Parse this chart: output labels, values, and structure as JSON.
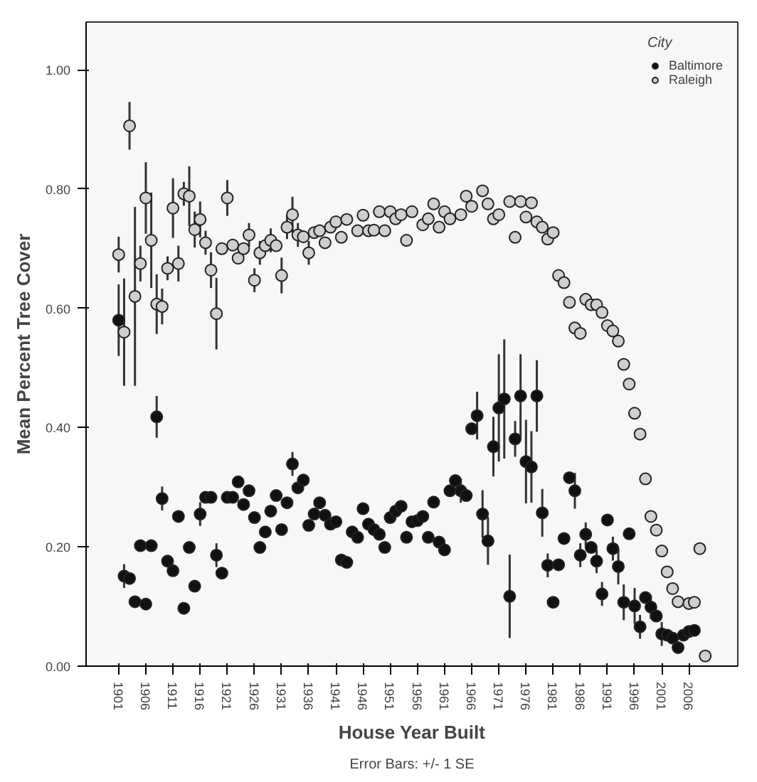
{
  "chart_data": {
    "type": "scatter",
    "xlabel": "House Year Built",
    "ylabel": "Mean Percent Tree Cover",
    "legend_title": "City",
    "legend": "top right",
    "marker": "circle",
    "grid": false,
    "annotations": [
      "Error Bars: +/- 1 SE"
    ],
    "xlim": [
      1895,
      2015
    ],
    "ylim": [
      0,
      1.08
    ],
    "xticks": [
      1901,
      1906,
      1911,
      1916,
      1921,
      1926,
      1931,
      1936,
      1941,
      1946,
      1951,
      1956,
      1961,
      1966,
      1971,
      1976,
      1981,
      1986,
      1991,
      1996,
      2001,
      2006
    ],
    "yticks": [
      {
        "value": 0,
        "label": "0.00"
      },
      {
        "value": 0.2,
        "label": "0.20"
      },
      {
        "value": 0.4,
        "label": "0.40"
      },
      {
        "value": 0.6,
        "label": "0.60"
      },
      {
        "value": 0.8,
        "label": "0.80"
      },
      {
        "value": 1.0,
        "label": "1.00"
      }
    ],
    "series": [
      {
        "name": "Baltimore",
        "color": "#111111",
        "x": [
          1901,
          1902,
          1903,
          1904,
          1905,
          1906,
          1907,
          1908,
          1909,
          1910,
          1911,
          1912,
          1913,
          1914,
          1915,
          1916,
          1917,
          1918,
          1919,
          1920,
          1921,
          1922,
          1923,
          1924,
          1925,
          1926,
          1927,
          1928,
          1929,
          1930,
          1931,
          1932,
          1933,
          1934,
          1935,
          1936,
          1937,
          1938,
          1939,
          1940,
          1941,
          1942,
          1943,
          1944,
          1945,
          1946,
          1947,
          1948,
          1949,
          1950,
          1951,
          1952,
          1953,
          1954,
          1955,
          1956,
          1957,
          1958,
          1959,
          1960,
          1961,
          1962,
          1963,
          1964,
          1965,
          1966,
          1967,
          1968,
          1969,
          1970,
          1971,
          1972,
          1973,
          1974,
          1975,
          1976,
          1977,
          1978,
          1979,
          1980,
          1981,
          1982,
          1983,
          1984,
          1985,
          1986,
          1987,
          1988,
          1989,
          1990,
          1991,
          1992,
          1993,
          1994,
          1995,
          1996,
          1997,
          1998,
          1999,
          2000,
          2001,
          2002,
          2003,
          2004,
          2005,
          2006,
          2007
        ],
        "values": [
          0.58,
          0.151,
          0.147,
          0.108,
          0.202,
          0.104,
          0.202,
          0.418,
          0.281,
          0.176,
          0.16,
          0.251,
          0.097,
          0.199,
          0.134,
          0.255,
          0.283,
          0.283,
          0.186,
          0.156,
          0.283,
          0.283,
          0.309,
          0.271,
          0.294,
          0.249,
          0.199,
          0.225,
          0.26,
          0.286,
          0.229,
          0.274,
          0.339,
          0.299,
          0.312,
          0.236,
          0.255,
          0.274,
          0.253,
          0.238,
          0.242,
          0.178,
          0.174,
          0.225,
          0.216,
          0.264,
          0.238,
          0.229,
          0.221,
          0.199,
          0.249,
          0.26,
          0.268,
          0.216,
          0.242,
          0.244,
          0.251,
          0.216,
          0.275,
          0.208,
          0.195,
          0.294,
          0.311,
          0.294,
          0.286,
          0.398,
          0.42,
          0.255,
          0.21,
          0.368,
          0.433,
          0.448,
          0.117,
          0.381,
          0.453,
          0.343,
          0.334,
          0.453,
          0.257,
          0.169,
          0.107,
          0.17,
          0.214,
          0.316,
          0.294,
          0.186,
          0.221,
          0.199,
          0.176,
          0.121,
          0.245,
          0.197,
          0.167,
          0.107,
          0.222,
          0.101,
          0.066,
          0.115,
          0.099,
          0.084,
          0.054,
          0.052,
          0.047,
          0.031,
          0.052,
          0.058,
          0.06
        ],
        "errors": [
          0.06,
          0.02,
          null,
          null,
          null,
          null,
          null,
          0.035,
          0.02,
          null,
          null,
          null,
          null,
          null,
          null,
          0.02,
          null,
          null,
          0.02,
          null,
          null,
          null,
          null,
          null,
          null,
          null,
          null,
          null,
          null,
          null,
          null,
          null,
          0.02,
          null,
          null,
          null,
          null,
          null,
          null,
          null,
          null,
          null,
          null,
          null,
          null,
          null,
          null,
          null,
          null,
          null,
          null,
          null,
          null,
          null,
          null,
          null,
          null,
          null,
          null,
          null,
          null,
          null,
          null,
          0.02,
          null,
          null,
          0.04,
          0.04,
          0.04,
          0.05,
          0.09,
          0.1,
          0.07,
          0.03,
          0.07,
          0.07,
          0.06,
          0.06,
          0.04,
          0.02,
          null,
          null,
          null,
          null,
          0.03,
          0.02,
          0.02,
          null,
          0.02,
          0.02,
          null,
          0.02,
          0.03,
          0.03,
          null,
          0.03,
          0.02,
          null,
          0.02,
          null,
          0.02,
          null,
          null,
          null,
          null,
          null,
          null
        ]
      },
      {
        "name": "Raleigh",
        "color": "#cfcfcf",
        "x": [
          1901,
          1902,
          1903,
          1904,
          1905,
          1906,
          1907,
          1908,
          1909,
          1910,
          1911,
          1912,
          1913,
          1914,
          1915,
          1916,
          1917,
          1918,
          1919,
          1920,
          1921,
          1922,
          1923,
          1924,
          1925,
          1926,
          1927,
          1928,
          1929,
          1930,
          1931,
          1932,
          1933,
          1934,
          1935,
          1936,
          1937,
          1938,
          1939,
          1940,
          1941,
          1942,
          1943,
          1945,
          1946,
          1947,
          1948,
          1949,
          1950,
          1951,
          1952,
          1953,
          1954,
          1955,
          1957,
          1958,
          1959,
          1960,
          1961,
          1962,
          1964,
          1965,
          1966,
          1968,
          1969,
          1970,
          1971,
          1973,
          1974,
          1975,
          1976,
          1977,
          1978,
          1979,
          1980,
          1981,
          1982,
          1983,
          1984,
          1985,
          1986,
          1987,
          1988,
          1989,
          1990,
          1991,
          1992,
          1993,
          1994,
          1995,
          1996,
          1997,
          1998,
          1999,
          2000,
          2001,
          2002,
          2003,
          2004,
          2006,
          2007,
          2008,
          2009
        ],
        "values": [
          0.69,
          0.56,
          0.906,
          0.62,
          0.675,
          0.785,
          0.714,
          0.607,
          0.603,
          0.667,
          0.768,
          0.675,
          0.792,
          0.788,
          0.732,
          0.749,
          0.71,
          0.664,
          0.591,
          0.7,
          0.785,
          0.706,
          0.684,
          0.7,
          0.723,
          0.647,
          0.693,
          0.705,
          0.714,
          0.705,
          0.655,
          0.736,
          0.757,
          0.723,
          0.72,
          0.693,
          0.727,
          0.73,
          0.71,
          0.736,
          0.745,
          0.719,
          0.749,
          0.73,
          0.756,
          0.73,
          0.731,
          0.762,
          0.73,
          0.762,
          0.75,
          0.757,
          0.714,
          0.762,
          0.74,
          0.75,
          0.775,
          0.736,
          0.762,
          0.75,
          0.757,
          0.788,
          0.771,
          0.797,
          0.775,
          0.75,
          0.757,
          0.779,
          0.719,
          0.779,
          0.753,
          0.777,
          0.745,
          0.736,
          0.716,
          0.727,
          0.655,
          0.643,
          0.61,
          0.567,
          0.558,
          0.615,
          0.606,
          0.606,
          0.593,
          0.571,
          0.562,
          0.545,
          0.506,
          0.473,
          0.424,
          0.389,
          0.314,
          0.251,
          0.228,
          0.193,
          0.158,
          0.13,
          0.108,
          0.105,
          0.107,
          0.197,
          0.017
        ],
        "errors": [
          0.03,
          0.09,
          0.04,
          0.15,
          0.03,
          0.06,
          0.08,
          0.05,
          0.03,
          0.02,
          0.05,
          0.03,
          0.02,
          0.05,
          0.03,
          0.03,
          0.02,
          0.03,
          0.06,
          null,
          0.03,
          null,
          null,
          null,
          0.02,
          0.02,
          0.02,
          null,
          0.02,
          null,
          0.03,
          0.02,
          0.03,
          0.02,
          null,
          0.02,
          null,
          null,
          null,
          null,
          null,
          null,
          null,
          null,
          null,
          null,
          null,
          null,
          null,
          null,
          null,
          null,
          null,
          null,
          null,
          null,
          null,
          null,
          null,
          null,
          null,
          null,
          null,
          null,
          null,
          null,
          null,
          null,
          null,
          null,
          null,
          null,
          null,
          null,
          null,
          null,
          null,
          null,
          null,
          null,
          null,
          null,
          null,
          null,
          null,
          null,
          null,
          null,
          null,
          null,
          null,
          null,
          null,
          null,
          null,
          null,
          null,
          null,
          null,
          null,
          null,
          null,
          null
        ]
      }
    ]
  }
}
